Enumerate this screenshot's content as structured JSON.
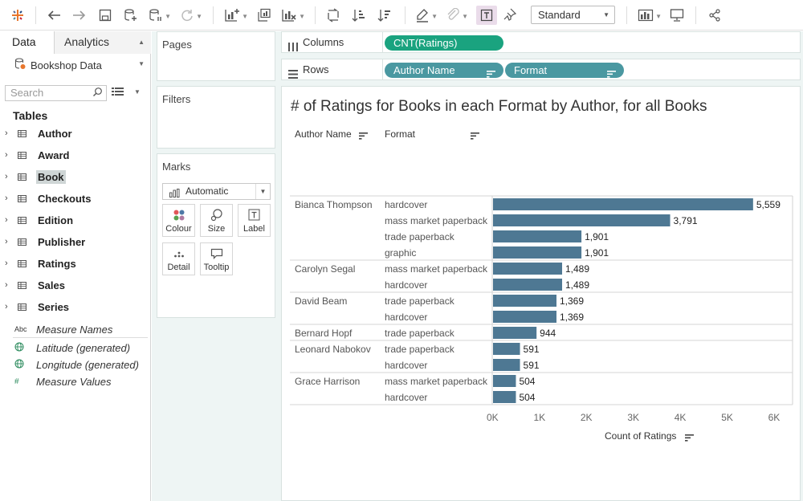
{
  "toolbar": {
    "view_mode": "Standard",
    "icons": [
      "tableau-logo-icon",
      "undo-icon",
      "redo-icon",
      "save-icon",
      "new-datasource-icon",
      "pause-updates-icon",
      "refresh-icon",
      "new-worksheet-icon",
      "duplicate-sheet-icon",
      "clear-sheet-icon",
      "swap-rows-columns-icon",
      "sort-ascending-icon",
      "sort-descending-icon",
      "highlight-icon",
      "group-icon",
      "show-mark-labels-icon",
      "fix-axes-icon",
      "show-me-icon",
      "presentation-mode-icon",
      "share-icon"
    ]
  },
  "data_pane": {
    "tabs": [
      "Data",
      "Analytics"
    ],
    "datasource": "Bookshop Data",
    "search_placeholder": "Search",
    "tables_heading": "Tables",
    "tables": [
      "Author",
      "Award",
      "Book",
      "Checkouts",
      "Edition",
      "Publisher",
      "Ratings",
      "Sales",
      "Series"
    ],
    "highlighted_table": "Book",
    "measures": [
      {
        "label": "Measure Names",
        "icon": "Abc"
      },
      {
        "label": "Latitude (generated)",
        "icon": "globe"
      },
      {
        "label": "Longitude (generated)",
        "icon": "globe"
      },
      {
        "label": "Measure Values",
        "icon": "#"
      }
    ]
  },
  "cards": {
    "pages": "Pages",
    "filters": "Filters",
    "marks": "Marks",
    "mark_type": "Automatic",
    "mark_buttons": [
      "Colour",
      "Size",
      "Label",
      "Detail",
      "Tooltip"
    ]
  },
  "shelves": {
    "columns_label": "Columns",
    "rows_label": "Rows",
    "column_pills": [
      "CNT(Ratings)"
    ],
    "row_pills": [
      "Author Name",
      "Format"
    ]
  },
  "colors": {
    "bar": "#4e7893",
    "pill_measure": "#1aa37f",
    "pill_dimension": "#4a98a1",
    "pane_bg": "#eef5f4"
  },
  "chart_data": {
    "type": "bar",
    "orientation": "horizontal",
    "title": "# of Ratings for Books in each Format by Author, for all Books",
    "row_headers": [
      "Author Name",
      "Format"
    ],
    "xlabel": "Count of Ratings",
    "xlim": [
      0,
      6400
    ],
    "xticks": [
      0,
      1000,
      2000,
      3000,
      4000,
      5000,
      6000
    ],
    "xtick_labels": [
      "0K",
      "1K",
      "2K",
      "3K",
      "4K",
      "5K",
      "6K"
    ],
    "groups": [
      {
        "author": "Bianca Thompson",
        "rows": [
          {
            "format": "hardcover",
            "value": 5559,
            "label": "5,559"
          },
          {
            "format": "mass market paperback",
            "value": 3791,
            "label": "3,791"
          },
          {
            "format": "trade paperback",
            "value": 1901,
            "label": "1,901"
          },
          {
            "format": "graphic",
            "value": 1901,
            "label": "1,901"
          }
        ]
      },
      {
        "author": "Carolyn Segal",
        "rows": [
          {
            "format": "mass market paperback",
            "value": 1489,
            "label": "1,489"
          },
          {
            "format": "hardcover",
            "value": 1489,
            "label": "1,489"
          }
        ]
      },
      {
        "author": "David Beam",
        "rows": [
          {
            "format": "trade paperback",
            "value": 1369,
            "label": "1,369"
          },
          {
            "format": "hardcover",
            "value": 1369,
            "label": "1,369"
          }
        ]
      },
      {
        "author": "Bernard Hopf",
        "rows": [
          {
            "format": "trade paperback",
            "value": 944,
            "label": "944"
          }
        ]
      },
      {
        "author": "Leonard Nabokov",
        "rows": [
          {
            "format": "trade paperback",
            "value": 591,
            "label": "591"
          },
          {
            "format": "hardcover",
            "value": 591,
            "label": "591"
          }
        ]
      },
      {
        "author": "Grace Harrison",
        "rows": [
          {
            "format": "mass market paperback",
            "value": 504,
            "label": "504"
          },
          {
            "format": "hardcover",
            "value": 504,
            "label": "504"
          }
        ]
      }
    ]
  }
}
